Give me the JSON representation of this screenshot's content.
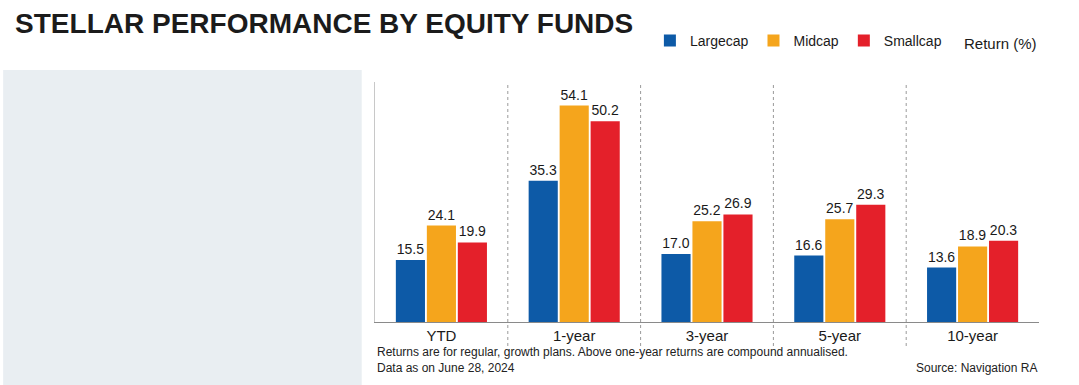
{
  "chart_data": {
    "type": "bar",
    "title": "STELLAR PERFORMANCE BY EQUITY FUNDS",
    "ylabel": "Return (%)",
    "categories": [
      "YTD",
      "1-year",
      "3-year",
      "5-year",
      "10-year"
    ],
    "series": [
      {
        "name": "Largecap",
        "color": "#0d5aa7",
        "values": [
          15.5,
          35.3,
          17.0,
          16.6,
          13.6
        ],
        "value_labels": [
          "15.5",
          "35.3",
          "17.0",
          "16.6",
          "13.6"
        ]
      },
      {
        "name": "Midcap",
        "color": "#f5a51c",
        "values": [
          24.1,
          54.1,
          25.2,
          25.7,
          18.9
        ],
        "value_labels": [
          "24.1",
          "54.1",
          "25.2",
          "25.7",
          "18.9"
        ]
      },
      {
        "name": "Smallcap",
        "color": "#e4202a",
        "values": [
          19.9,
          50.2,
          26.9,
          29.3,
          20.3
        ],
        "value_labels": [
          "19.9",
          "50.2",
          "26.9",
          "29.3",
          "20.3"
        ]
      }
    ],
    "ylim": [
      0,
      60
    ],
    "grid": false,
    "legend": "top",
    "data_labels": true,
    "tick_labels": "x",
    "notes": [
      "Returns are for regular, growth plans. Above one-year returns are compound annualised.",
      "Data as on June 28, 2024"
    ],
    "source": "Source: Navigation RA"
  }
}
